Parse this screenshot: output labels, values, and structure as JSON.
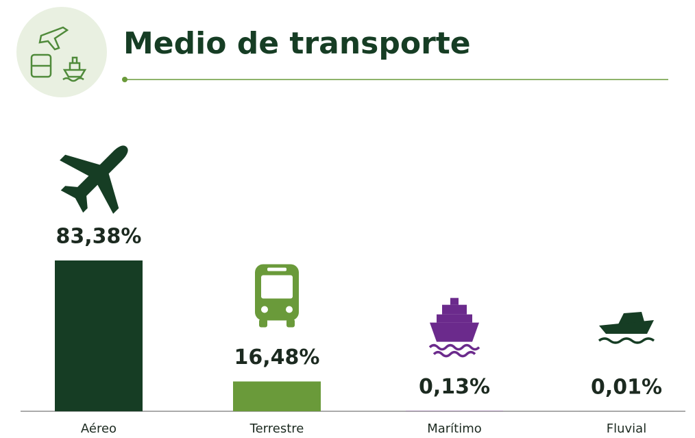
{
  "chart_data": {
    "type": "bar",
    "title": "Medio de transporte",
    "categories": [
      "Aéreo",
      "Terrestre",
      "Marítimo",
      "Fluvial"
    ],
    "values": [
      83.38,
      16.48,
      0.13,
      0.01
    ],
    "value_labels": [
      "83,38%",
      "16,48%",
      "0,13%",
      "0,01%"
    ],
    "colors": [
      "#163d24",
      "#6a9a3a",
      "#6b2a8c",
      "#163d24"
    ]
  }
}
